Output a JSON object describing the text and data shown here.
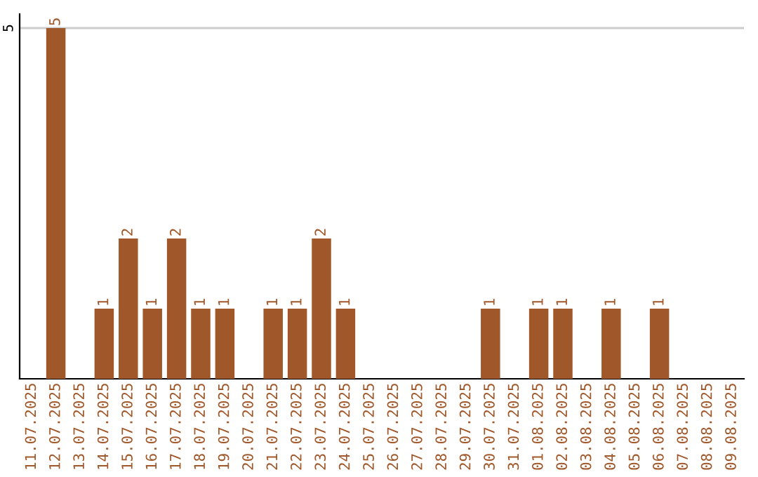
{
  "chart_data": {
    "type": "bar",
    "categories": [
      "11.07.2025",
      "12.07.2025",
      "13.07.2025",
      "14.07.2025",
      "15.07.2025",
      "16.07.2025",
      "17.07.2025",
      "18.07.2025",
      "19.07.2025",
      "20.07.2025",
      "21.07.2025",
      "22.07.2025",
      "23.07.2025",
      "24.07.2025",
      "25.07.2025",
      "26.07.2025",
      "27.07.2025",
      "28.07.2025",
      "29.07.2025",
      "30.07.2025",
      "31.07.2025",
      "01.08.2025",
      "02.08.2025",
      "03.08.2025",
      "04.08.2025",
      "05.08.2025",
      "06.08.2025",
      "07.08.2025",
      "08.08.2025",
      "09.08.2025"
    ],
    "values": [
      0,
      5,
      0,
      1,
      2,
      1,
      2,
      1,
      1,
      0,
      1,
      1,
      2,
      1,
      0,
      0,
      0,
      0,
      0,
      1,
      0,
      1,
      1,
      0,
      1,
      0,
      1,
      0,
      0,
      0
    ],
    "value_labels": [
      null,
      "5",
      null,
      "1",
      "2",
      "1",
      "2",
      "1",
      "1",
      null,
      "1",
      "1",
      "2",
      "1",
      null,
      null,
      null,
      null,
      null,
      "1",
      null,
      "1",
      "1",
      null,
      "1",
      null,
      "1",
      null,
      null,
      null
    ],
    "color": "#a0582a",
    "ylim": [
      0,
      5.2
    ],
    "yticks": [
      5
    ],
    "grid": "y"
  }
}
